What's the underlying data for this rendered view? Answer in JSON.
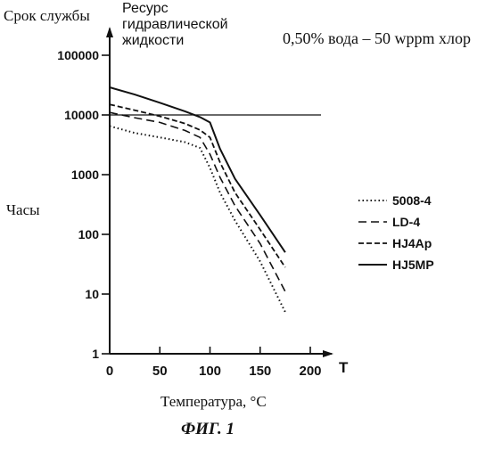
{
  "ylabel_left_top": "Срок службы",
  "ylabel_right_top_line1": "Ресурс",
  "ylabel_right_top_line2": "гидравлической",
  "ylabel_right_top_line3": "жидкости",
  "ylabel_side": "Часы",
  "condition_note": "0,50% вода – 50 wppm хлор",
  "xlabel": "Температура, °C",
  "x_axis_symbol": "T",
  "figure_caption": "ФИГ. 1",
  "chart_data": {
    "type": "line",
    "title": "",
    "xlabel": "Температура, °C",
    "ylabel": "Часы",
    "x_ticks": [
      0,
      50,
      100,
      150,
      200
    ],
    "x_tick_labels": [
      "0",
      "50",
      "100",
      "150",
      "200"
    ],
    "xlim": [
      0,
      200
    ],
    "y_scale": "log",
    "y_ticks": [
      1,
      10,
      100,
      1000,
      10000,
      100000
    ],
    "y_tick_labels": [
      "1",
      "10",
      "100",
      "1000",
      "10000",
      "100000"
    ],
    "ylim": [
      1,
      100000
    ],
    "grid": false,
    "legend_position": "right",
    "series": [
      {
        "name": "5008-4",
        "line_style": "dotted",
        "x": [
          0,
          25,
          50,
          75,
          90,
          100,
          110,
          125,
          150,
          175
        ],
        "y": [
          6500,
          5000,
          4200,
          3500,
          2800,
          1300,
          500,
          170,
          35,
          5
        ]
      },
      {
        "name": "LD-4",
        "line_style": "dashed",
        "x": [
          0,
          25,
          50,
          75,
          90,
          100,
          110,
          125,
          150,
          175
        ],
        "y": [
          11000,
          9000,
          7500,
          5500,
          4200,
          2200,
          900,
          300,
          70,
          11
        ]
      },
      {
        "name": "HJ4Ap",
        "line_style": "dash-dot",
        "x": [
          0,
          25,
          50,
          75,
          90,
          100,
          110,
          125,
          150,
          175
        ],
        "y": [
          15000,
          12000,
          9500,
          7200,
          5600,
          4200,
          1600,
          500,
          120,
          28
        ]
      },
      {
        "name": "HJ5MP",
        "line_style": "solid",
        "x": [
          0,
          25,
          50,
          75,
          90,
          100,
          110,
          125,
          150,
          175
        ],
        "y": [
          29000,
          22000,
          16000,
          11500,
          9200,
          7500,
          2700,
          850,
          210,
          50
        ]
      }
    ]
  },
  "colors": {
    "ink": "#111111",
    "background": "#ffffff"
  }
}
